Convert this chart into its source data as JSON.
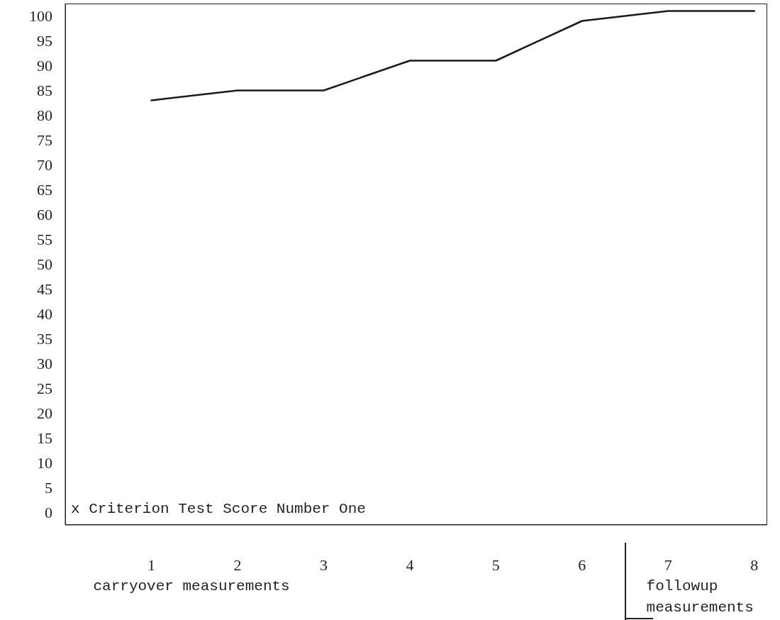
{
  "chart_data": {
    "type": "line",
    "x": [
      1,
      2,
      3,
      4,
      5,
      6,
      7,
      8
    ],
    "values": [
      83,
      85,
      85,
      91,
      91,
      99,
      101,
      101
    ],
    "color": "#1a1a1a",
    "xlim": [
      0,
      8.15
    ],
    "xticks": [
      1,
      2,
      3,
      4,
      5,
      6,
      7,
      8
    ],
    "ylim": [
      -2.5,
      102.5
    ],
    "yticks": [
      0,
      5,
      10,
      15,
      20,
      25,
      30,
      35,
      40,
      45,
      50,
      55,
      60,
      65,
      70,
      75,
      80,
      85,
      90,
      95,
      100
    ],
    "grid": false,
    "marker": "none",
    "line_style": "solid",
    "annotations": [
      "x Criterion Test Score Number One",
      "carryover measurements",
      "followup measurements"
    ]
  }
}
